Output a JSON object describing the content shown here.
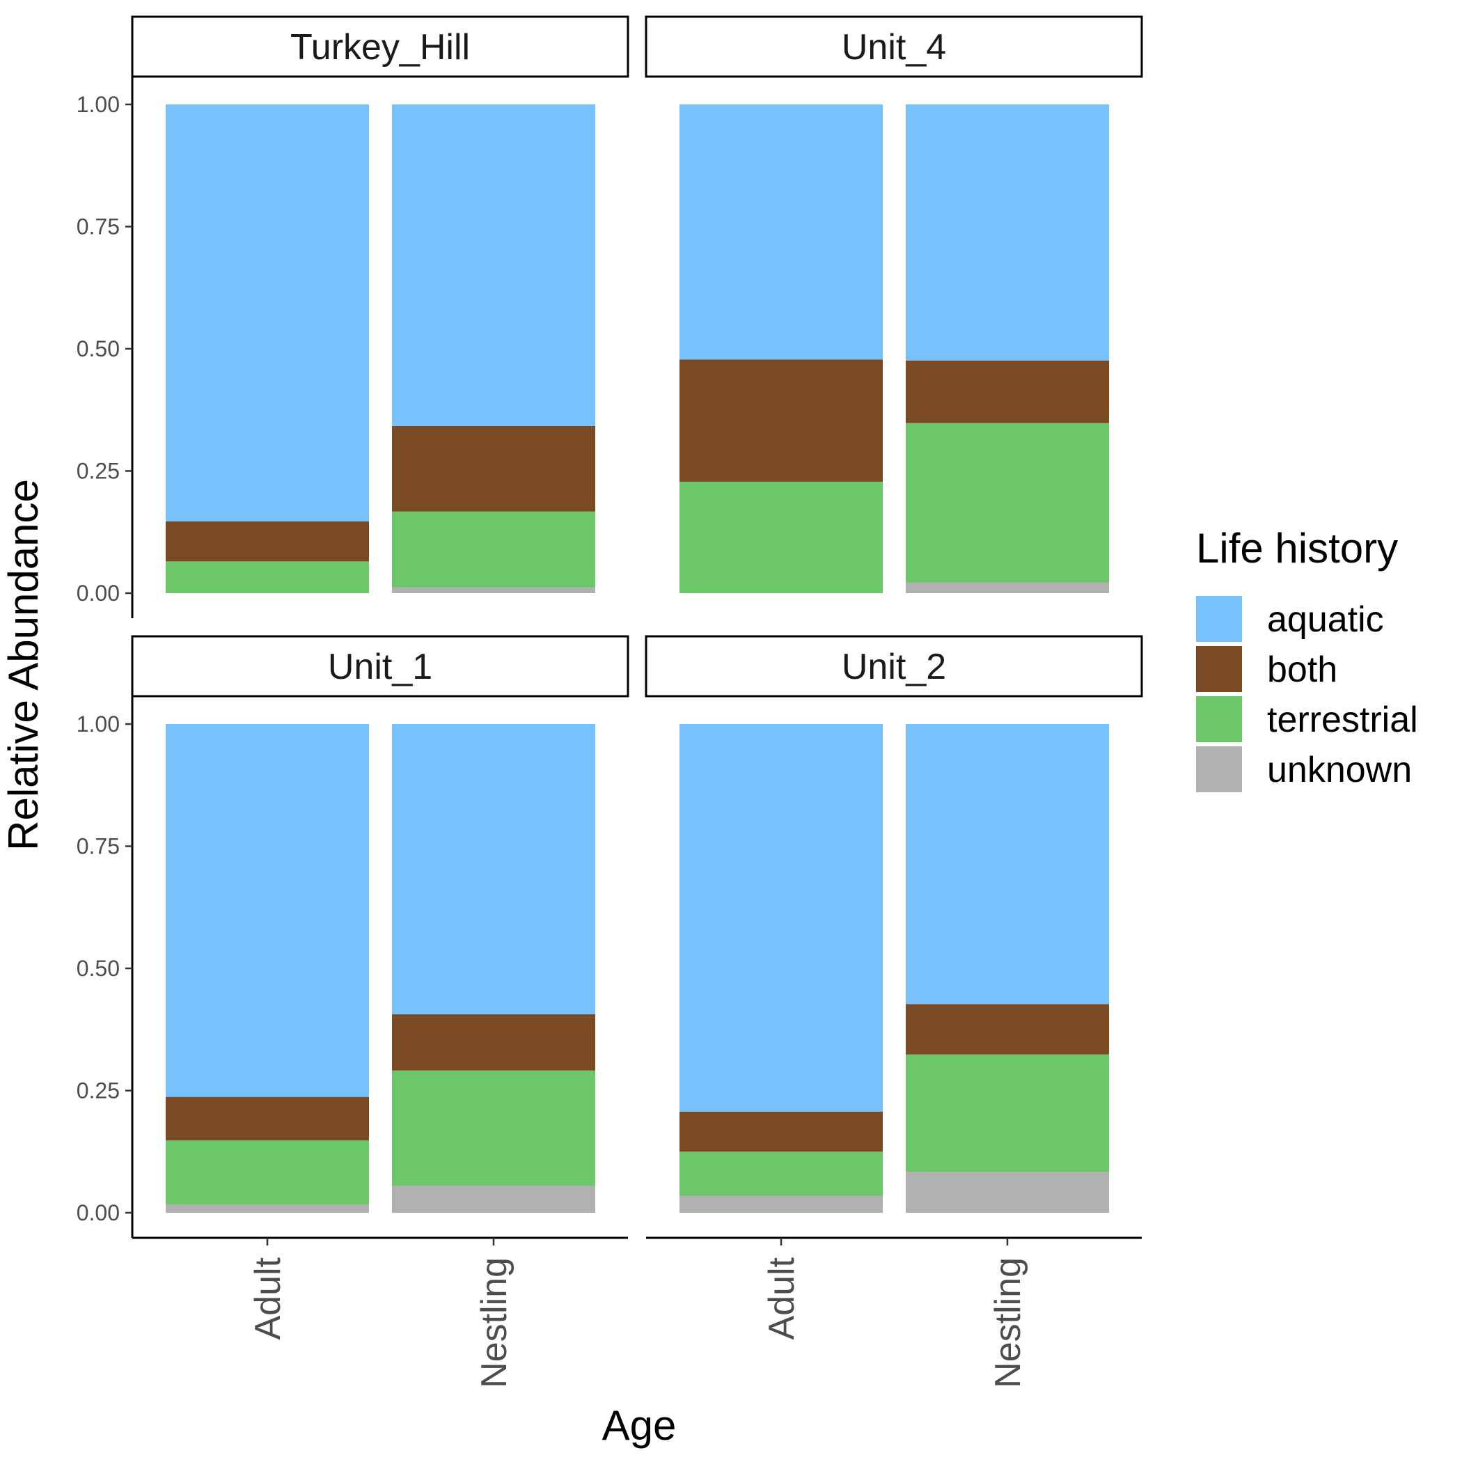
{
  "chart_data": {
    "type": "bar",
    "stacked": true,
    "xlabel": "Age",
    "ylabel": "Relative Abundance",
    "ylim": [
      0,
      1
    ],
    "yticks": [
      "0.00",
      "0.25",
      "0.50",
      "0.75",
      "1.00"
    ],
    "categories": [
      "Adult",
      "Nestling"
    ],
    "legend": {
      "title": "Life history",
      "position": "right",
      "entries": [
        {
          "name": "aquatic",
          "color": "#77C1FD"
        },
        {
          "name": "both",
          "color": "#7A4A24"
        },
        {
          "name": "terrestrial",
          "color": "#6CC66A"
        },
        {
          "name": "unknown",
          "color": "#B0B0B0"
        }
      ]
    },
    "facets": [
      {
        "name": "Turkey_Hill",
        "series": [
          {
            "name": "unknown",
            "values": [
              0.0,
              0.012
            ]
          },
          {
            "name": "terrestrial",
            "values": [
              0.065,
              0.155
            ]
          },
          {
            "name": "both",
            "values": [
              0.082,
              0.175
            ]
          },
          {
            "name": "aquatic",
            "values": [
              0.853,
              0.658
            ]
          }
        ]
      },
      {
        "name": "Unit_4",
        "series": [
          {
            "name": "unknown",
            "values": [
              0.0,
              0.022
            ]
          },
          {
            "name": "terrestrial",
            "values": [
              0.228,
              0.326
            ]
          },
          {
            "name": "both",
            "values": [
              0.25,
              0.128
            ]
          },
          {
            "name": "aquatic",
            "values": [
              0.522,
              0.524
            ]
          }
        ]
      },
      {
        "name": "Unit_1",
        "series": [
          {
            "name": "unknown",
            "values": [
              0.017,
              0.055
            ]
          },
          {
            "name": "terrestrial",
            "values": [
              0.131,
              0.236
            ]
          },
          {
            "name": "both",
            "values": [
              0.089,
              0.115
            ]
          },
          {
            "name": "aquatic",
            "values": [
              0.763,
              0.594
            ]
          }
        ]
      },
      {
        "name": "Unit_2",
        "series": [
          {
            "name": "unknown",
            "values": [
              0.035,
              0.084
            ]
          },
          {
            "name": "terrestrial",
            "values": [
              0.09,
              0.24
            ]
          },
          {
            "name": "both",
            "values": [
              0.082,
              0.103
            ]
          },
          {
            "name": "aquatic",
            "values": [
              0.793,
              0.573
            ]
          }
        ]
      }
    ]
  }
}
